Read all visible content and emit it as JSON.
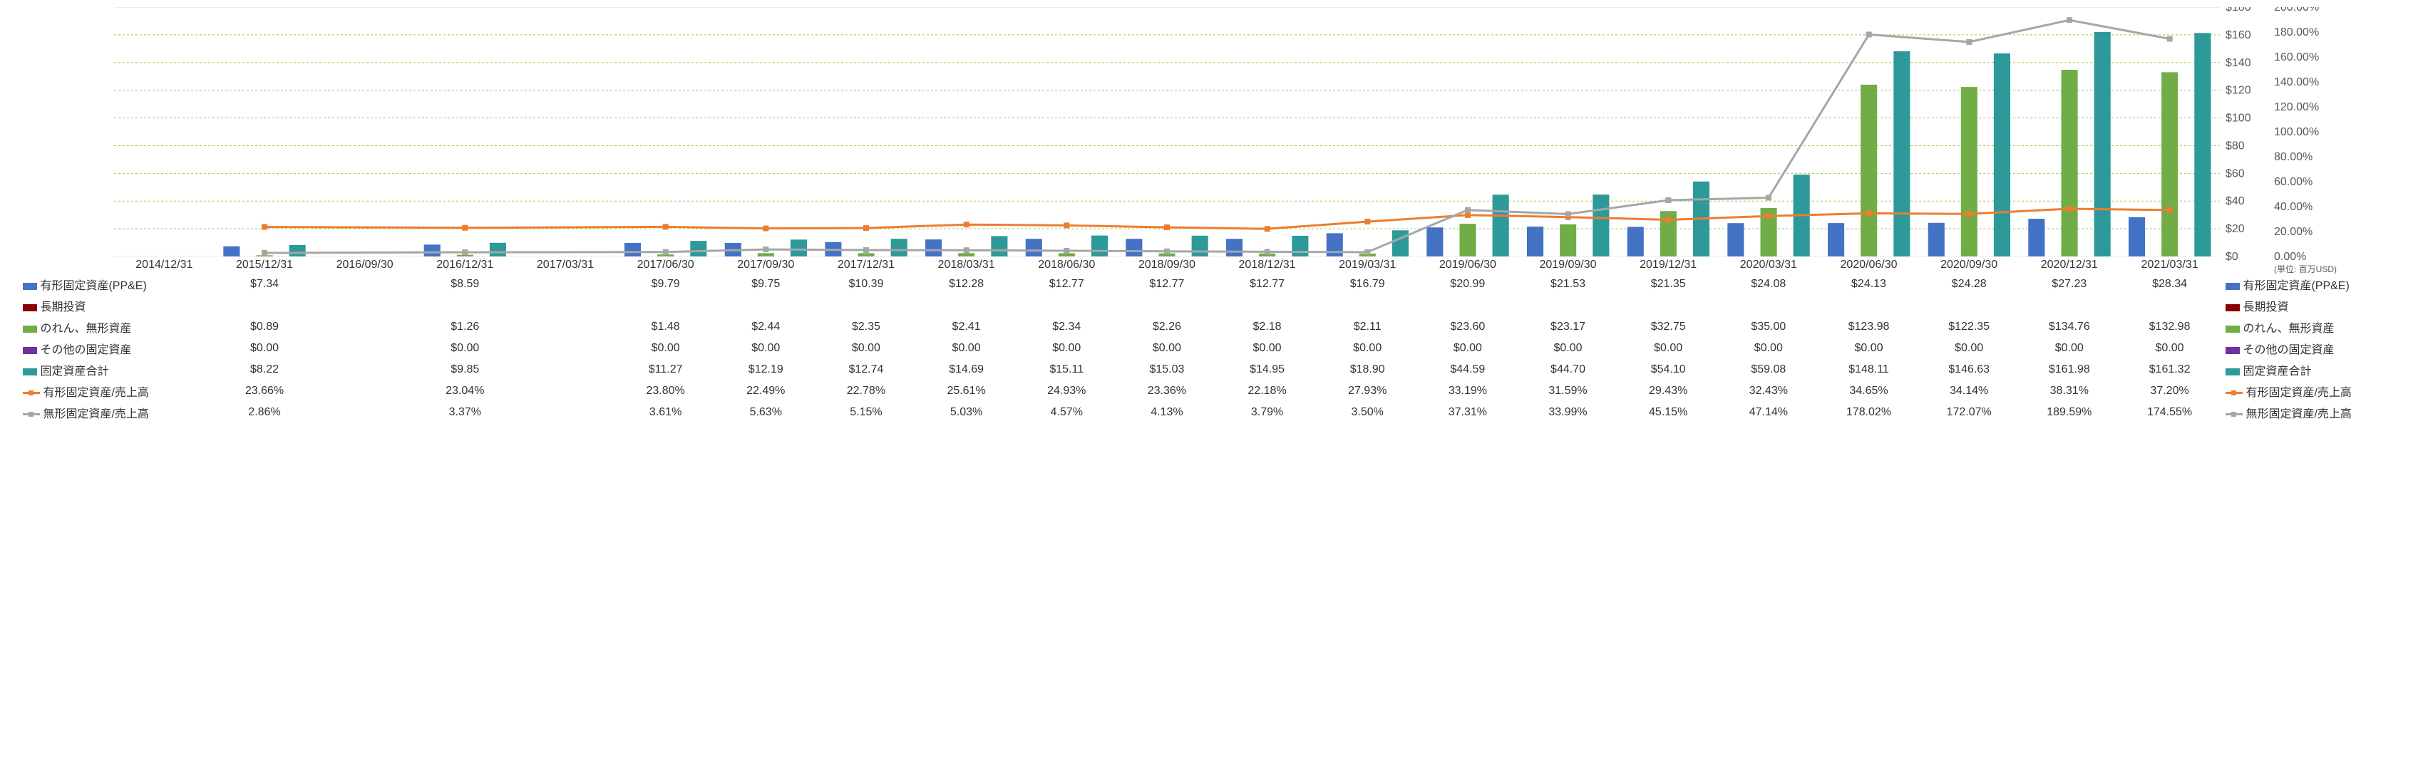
{
  "unit_label": "(単位: 百万USD)",
  "chart": {
    "y1_min": 0,
    "y1_max": 180,
    "y1_step": 20,
    "y1_prefix": "$",
    "y2_min": 0,
    "y2_max": 200,
    "y2_step": 20,
    "y2_suffix": "%",
    "grid_color": "#92d050",
    "plot_border_color": "#d9d9d9",
    "value_colors": {
      "ppe": "#4472c4",
      "longterm": "#8b0000",
      "goodwill": "#70ad47",
      "other": "#7030a0",
      "total": "#2e9999",
      "ratio1": "#ed7d31",
      "ratio2": "#a6a6a6"
    },
    "bar_group_width": 0.82,
    "line_width": 3,
    "marker_size": 7
  },
  "periods": [
    "2014/12/31",
    "2015/12/31",
    "2016/09/30",
    "2016/12/31",
    "2017/03/31",
    "2017/06/30",
    "2017/09/30",
    "2017/12/31",
    "2018/03/31",
    "2018/06/30",
    "2018/09/30",
    "2018/12/31",
    "2019/03/31",
    "2019/06/30",
    "2019/09/30",
    "2019/12/31",
    "2020/03/31",
    "2020/06/30",
    "2020/09/30",
    "2020/12/31",
    "2021/03/31"
  ],
  "series": [
    {
      "key": "ppe",
      "label": "有形固定資産(PP&E)",
      "type": "bar",
      "axis": "y1",
      "fmt": "currency",
      "values": [
        null,
        7.34,
        null,
        8.59,
        null,
        9.79,
        9.75,
        10.39,
        12.28,
        12.77,
        12.77,
        12.77,
        16.79,
        20.99,
        21.53,
        21.35,
        24.08,
        24.13,
        24.28,
        27.23,
        28.34
      ]
    },
    {
      "key": "longterm",
      "label": "長期投資",
      "type": "bar",
      "axis": "y1",
      "fmt": "currency",
      "values": [
        null,
        null,
        null,
        null,
        null,
        null,
        null,
        null,
        null,
        null,
        null,
        null,
        null,
        null,
        null,
        null,
        null,
        null,
        null,
        null,
        null
      ]
    },
    {
      "key": "goodwill",
      "label": "のれん、無形資産",
      "type": "bar",
      "axis": "y1",
      "fmt": "currency",
      "values": [
        null,
        0.89,
        null,
        1.26,
        null,
        1.48,
        2.44,
        2.35,
        2.41,
        2.34,
        2.26,
        2.18,
        2.11,
        23.6,
        23.17,
        32.75,
        35.0,
        123.98,
        122.35,
        134.76,
        132.98
      ]
    },
    {
      "key": "other",
      "label": "その他の固定資産",
      "type": "bar",
      "axis": "y1",
      "fmt": "currency",
      "values": [
        null,
        0.0,
        null,
        0.0,
        null,
        0.0,
        0.0,
        0.0,
        0.0,
        0.0,
        0.0,
        0.0,
        0.0,
        0.0,
        0.0,
        0.0,
        0.0,
        0.0,
        0.0,
        0.0,
        0.0
      ]
    },
    {
      "key": "total",
      "label": "固定資産合計",
      "type": "bar",
      "axis": "y1",
      "fmt": "currency",
      "values": [
        null,
        8.22,
        null,
        9.85,
        null,
        11.27,
        12.19,
        12.74,
        14.69,
        15.11,
        15.03,
        14.95,
        18.9,
        44.59,
        44.7,
        54.1,
        59.08,
        148.11,
        146.63,
        161.98,
        161.32
      ]
    },
    {
      "key": "ratio1",
      "label": "有形固定資産/売上高",
      "type": "line",
      "axis": "y2",
      "fmt": "percent",
      "values": [
        null,
        23.66,
        null,
        23.04,
        null,
        23.8,
        22.49,
        22.78,
        25.61,
        24.93,
        23.36,
        22.18,
        27.93,
        33.19,
        31.59,
        29.43,
        32.43,
        34.65,
        34.14,
        38.31,
        37.2
      ]
    },
    {
      "key": "ratio2",
      "label": "無形固定資産/売上高",
      "type": "line",
      "axis": "y2",
      "fmt": "percent",
      "values": [
        null,
        2.86,
        null,
        3.37,
        null,
        3.61,
        5.63,
        5.15,
        5.03,
        4.57,
        4.13,
        3.79,
        3.5,
        37.31,
        33.99,
        45.15,
        47.14,
        178.02,
        172.07,
        189.59,
        174.55
      ]
    }
  ]
}
